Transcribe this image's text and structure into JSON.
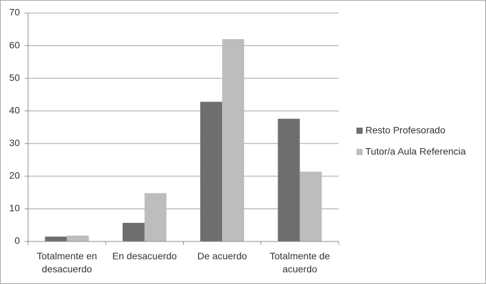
{
  "chart_data": {
    "type": "bar",
    "categories": [
      "Totalmente en desacuerdo",
      "En desacuerdo",
      "De acuerdo",
      "Totalmente de acuerdo"
    ],
    "series": [
      {
        "name": "Resto Profesorado",
        "color": "#6e6e6e",
        "values": [
          1.5,
          5.7,
          42.8,
          37.6
        ]
      },
      {
        "name": "Tutor/a Aula Referencia",
        "color": "#bdbdbd",
        "values": [
          1.8,
          14.8,
          62,
          21.4
        ]
      }
    ],
    "ylim": [
      0,
      70
    ],
    "yticks": [
      0,
      10,
      20,
      30,
      40,
      50,
      60,
      70
    ],
    "grid": true,
    "legend": "right"
  }
}
